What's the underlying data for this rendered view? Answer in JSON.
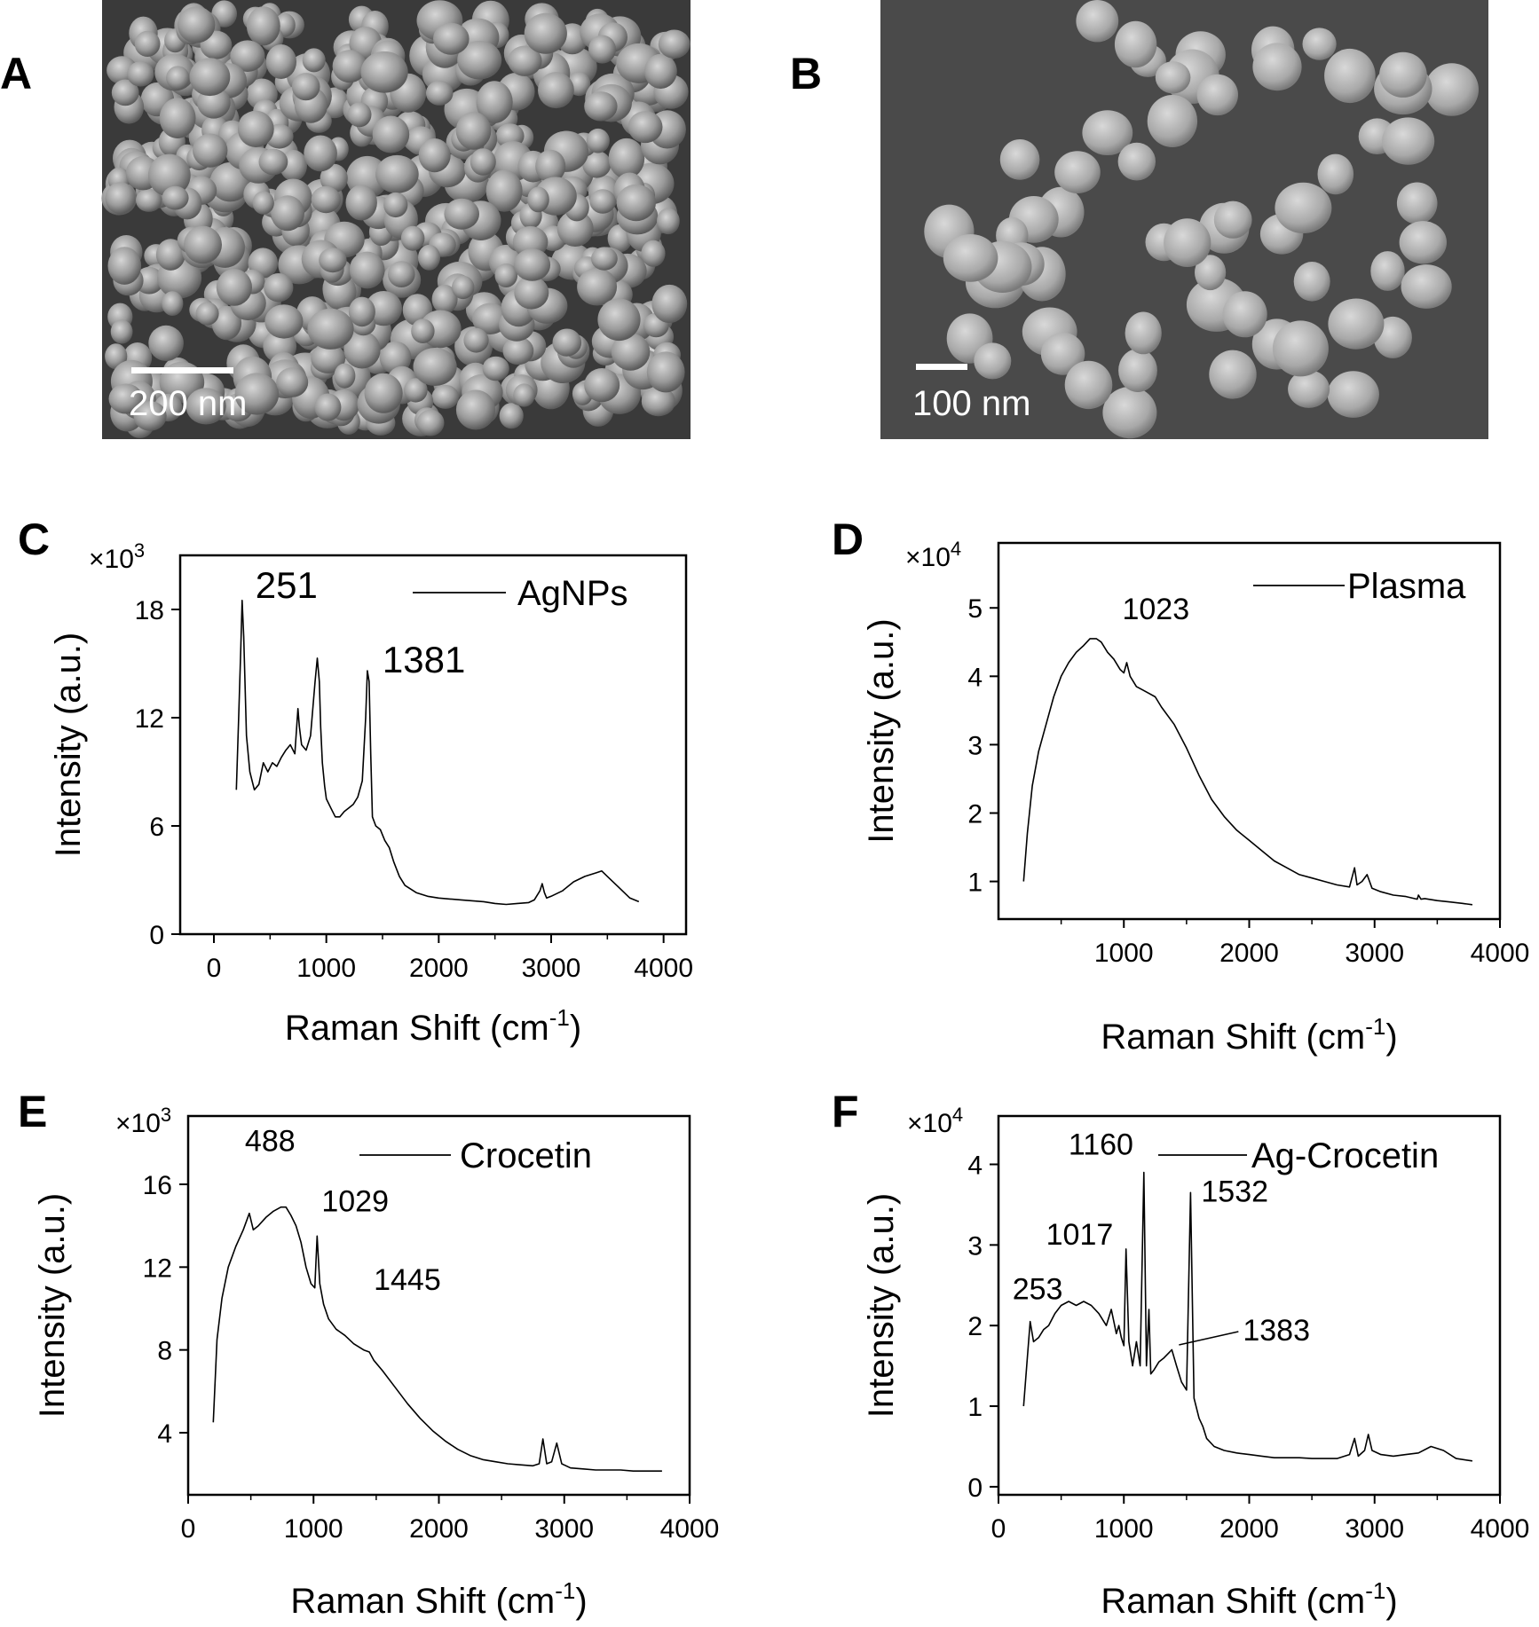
{
  "micrographs": [
    {
      "letter": "A",
      "scale_label": "200 nm"
    },
    {
      "letter": "B",
      "scale_label": "100 nm"
    }
  ],
  "chart_data": [
    {
      "letter": "C",
      "type": "line",
      "xlabel": "Raman Shift (cm",
      "xlabel_sup": "-1",
      "xlabel_close": ")",
      "ylabel": "Intensity (a.u.)",
      "multiplier_base": "×10",
      "multiplier_exp": "3",
      "xlim": [
        -300,
        4200
      ],
      "ylim": [
        0,
        21
      ],
      "xticks": [
        0,
        1000,
        2000,
        3000,
        4000
      ],
      "yticks": [
        0,
        6,
        12,
        18
      ],
      "legend": "AgNPs",
      "annotations": [
        {
          "text": "251",
          "x": 251,
          "y": 18.4,
          "dx": 15,
          "dy": -5,
          "size": "big"
        },
        {
          "text": "1381",
          "x": 1381,
          "y": 14.6,
          "dx": 15,
          "dy": 2,
          "size": "big"
        }
      ],
      "series": [
        {
          "x": [
            200,
            220,
            240,
            251,
            265,
            290,
            320,
            360,
            400,
            440,
            480,
            520,
            560,
            600,
            640,
            680,
            720,
            748,
            760,
            780,
            820,
            860,
            900,
            920,
            938,
            950,
            965,
            985,
            1000,
            1040,
            1080,
            1120,
            1160,
            1200,
            1240,
            1280,
            1320,
            1350,
            1365,
            1381,
            1395,
            1410,
            1440,
            1480,
            1520,
            1560,
            1600,
            1650,
            1700,
            1800,
            1900,
            2000,
            2100,
            2200,
            2300,
            2400,
            2500,
            2600,
            2700,
            2800,
            2850,
            2900,
            2920,
            2940,
            2960,
            3000,
            3100,
            3200,
            3300,
            3400,
            3450,
            3500,
            3600,
            3700,
            3780
          ],
          "y": [
            8.0,
            12.0,
            16.0,
            18.5,
            16.5,
            11.0,
            9.0,
            8.0,
            8.3,
            9.5,
            9.0,
            9.5,
            9.3,
            9.8,
            10.2,
            10.5,
            10.0,
            12.5,
            11.5,
            10.5,
            10.2,
            11.0,
            14.0,
            15.3,
            14.0,
            11.5,
            9.5,
            8.2,
            7.5,
            7.0,
            6.5,
            6.5,
            6.8,
            7.0,
            7.2,
            7.6,
            8.5,
            12.0,
            14.6,
            14.0,
            10.0,
            6.5,
            6.0,
            5.8,
            5.2,
            4.8,
            4.0,
            3.2,
            2.7,
            2.3,
            2.1,
            2.0,
            1.95,
            1.9,
            1.85,
            1.8,
            1.7,
            1.65,
            1.7,
            1.75,
            1.9,
            2.4,
            2.8,
            2.3,
            2.0,
            2.1,
            2.4,
            2.9,
            3.2,
            3.4,
            3.5,
            3.2,
            2.6,
            2.0,
            1.8
          ]
        }
      ]
    },
    {
      "letter": "D",
      "type": "line",
      "xlabel": "Raman Shift (cm",
      "xlabel_sup": "-1",
      "xlabel_close": ")",
      "ylabel": "Intensity (a.u.)",
      "multiplier_base": "×10",
      "multiplier_exp": "4",
      "xlim": [
        0,
        4000
      ],
      "ylim": [
        0.45,
        5.95
      ],
      "xticks": [
        1000,
        2000,
        3000,
        4000
      ],
      "yticks": [
        1,
        2,
        3,
        4,
        5
      ],
      "legend": "Plasma",
      "annotations": [
        {
          "text": "1023",
          "x": 1023,
          "y": 4.25,
          "dx": -5,
          "dy": -45,
          "size": "normal"
        }
      ],
      "series": [
        {
          "x": [
            200,
            230,
            270,
            320,
            380,
            440,
            500,
            560,
            620,
            680,
            730,
            780,
            820,
            870,
            920,
            970,
            1000,
            1023,
            1050,
            1100,
            1150,
            1200,
            1250,
            1300,
            1400,
            1500,
            1600,
            1700,
            1800,
            1900,
            2000,
            2100,
            2200,
            2300,
            2400,
            2500,
            2600,
            2700,
            2800,
            2840,
            2860,
            2900,
            2940,
            2980,
            3050,
            3150,
            3250,
            3340,
            3350,
            3370,
            3400,
            3500,
            3600,
            3700,
            3780
          ],
          "y": [
            1.0,
            1.7,
            2.4,
            2.9,
            3.3,
            3.7,
            4.0,
            4.2,
            4.35,
            4.45,
            4.55,
            4.55,
            4.5,
            4.35,
            4.25,
            4.1,
            4.05,
            4.2,
            4.0,
            3.85,
            3.8,
            3.75,
            3.7,
            3.55,
            3.3,
            2.95,
            2.55,
            2.2,
            1.95,
            1.75,
            1.6,
            1.45,
            1.3,
            1.2,
            1.1,
            1.05,
            1.0,
            0.95,
            0.92,
            1.2,
            0.95,
            1.0,
            1.1,
            0.9,
            0.85,
            0.8,
            0.78,
            0.74,
            0.8,
            0.74,
            0.75,
            0.72,
            0.7,
            0.68,
            0.66
          ]
        }
      ]
    },
    {
      "letter": "E",
      "type": "line",
      "xlabel": "Raman Shift (cm",
      "xlabel_sup": "-1",
      "xlabel_close": ")",
      "ylabel": "Intensity (a.u.)",
      "multiplier_base": "×10",
      "multiplier_exp": "3",
      "xlim": [
        0,
        4000
      ],
      "ylim": [
        1,
        19.3
      ],
      "xticks": [
        0,
        1000,
        2000,
        3000,
        4000
      ],
      "yticks": [
        4,
        8,
        12,
        16
      ],
      "legend": "Crocetin",
      "annotations": [
        {
          "text": "488",
          "x": 488,
          "y": 14.6,
          "dx": -5,
          "dy": -70,
          "size": "normal"
        },
        {
          "text": "1029",
          "x": 1029,
          "y": 13.5,
          "dx": 5,
          "dy": -28,
          "size": "normal"
        },
        {
          "text": "1445",
          "x": 1445,
          "y": 7.9,
          "dx": 5,
          "dy": -70,
          "size": "normal"
        }
      ],
      "series": [
        {
          "x": [
            200,
            230,
            270,
            320,
            380,
            440,
            488,
            520,
            560,
            620,
            680,
            740,
            780,
            820,
            860,
            900,
            940,
            980,
            1010,
            1029,
            1050,
            1080,
            1120,
            1180,
            1250,
            1320,
            1400,
            1445,
            1480,
            1550,
            1650,
            1750,
            1850,
            1950,
            2050,
            2150,
            2250,
            2350,
            2450,
            2550,
            2650,
            2750,
            2800,
            2830,
            2860,
            2900,
            2940,
            2980,
            3050,
            3150,
            3250,
            3350,
            3450,
            3550,
            3650,
            3780
          ],
          "y": [
            4.5,
            8.5,
            10.5,
            12.0,
            13.0,
            13.8,
            14.6,
            13.8,
            14.0,
            14.4,
            14.7,
            14.9,
            14.9,
            14.5,
            14.0,
            13.2,
            12.0,
            11.2,
            11.0,
            13.5,
            11.2,
            10.2,
            9.5,
            9.0,
            8.7,
            8.3,
            8.0,
            7.9,
            7.5,
            7.0,
            6.2,
            5.4,
            4.7,
            4.1,
            3.6,
            3.2,
            2.9,
            2.7,
            2.6,
            2.5,
            2.45,
            2.4,
            2.5,
            3.7,
            2.5,
            2.6,
            3.5,
            2.5,
            2.3,
            2.25,
            2.2,
            2.2,
            2.2,
            2.15,
            2.15,
            2.15
          ]
        }
      ]
    },
    {
      "letter": "F",
      "type": "line",
      "xlabel": "Raman Shift (cm",
      "xlabel_sup": "-1",
      "xlabel_close": ")",
      "ylabel": "Intensity (a.u.)",
      "multiplier_base": "×10",
      "multiplier_exp": "4",
      "xlim": [
        0,
        4000
      ],
      "ylim": [
        -0.1,
        4.6
      ],
      "xticks": [
        0,
        1000,
        2000,
        3000,
        4000
      ],
      "yticks": [
        0,
        1,
        2,
        3,
        4
      ],
      "legend": "Ag-Crocetin",
      "annotations": [
        {
          "text": "253",
          "x": 253,
          "y": 2.05,
          "dx": -20,
          "dy": -25,
          "size": "normal"
        },
        {
          "text": "1017",
          "x": 1017,
          "y": 2.95,
          "dx": -90,
          "dy": -5,
          "size": "normal"
        },
        {
          "text": "1160",
          "x": 1160,
          "y": 3.9,
          "dx": -85,
          "dy": -20,
          "size": "normal",
          "color": "#e8121b"
        },
        {
          "text": "1532",
          "x": 1532,
          "y": 3.65,
          "dx": 12,
          "dy": 10,
          "size": "normal",
          "color": "#e8121b"
        },
        {
          "text": "1383",
          "x": 1383,
          "y": 1.65,
          "dx": 80,
          "dy": -15,
          "size": "normal",
          "leader": true
        }
      ],
      "series": [
        {
          "x": [
            200,
            230,
            253,
            280,
            320,
            360,
            400,
            450,
            500,
            560,
            620,
            680,
            740,
            800,
            860,
            900,
            940,
            960,
            980,
            1000,
            1017,
            1040,
            1070,
            1100,
            1130,
            1160,
            1180,
            1200,
            1215,
            1240,
            1280,
            1320,
            1383,
            1420,
            1460,
            1500,
            1532,
            1560,
            1600,
            1630,
            1660,
            1720,
            1800,
            1900,
            2000,
            2100,
            2200,
            2300,
            2400,
            2500,
            2600,
            2700,
            2800,
            2840,
            2870,
            2920,
            2950,
            2980,
            3050,
            3150,
            3250,
            3350,
            3450,
            3550,
            3650,
            3780
          ],
          "y": [
            1.0,
            1.6,
            2.05,
            1.8,
            1.85,
            1.95,
            2.0,
            2.15,
            2.25,
            2.3,
            2.25,
            2.3,
            2.25,
            2.15,
            2.0,
            2.2,
            1.9,
            2.0,
            1.85,
            1.75,
            2.95,
            1.8,
            1.5,
            1.8,
            1.5,
            3.9,
            1.5,
            2.2,
            1.4,
            1.45,
            1.55,
            1.6,
            1.7,
            1.5,
            1.3,
            1.2,
            3.65,
            1.1,
            0.85,
            0.75,
            0.6,
            0.5,
            0.45,
            0.42,
            0.4,
            0.38,
            0.36,
            0.36,
            0.36,
            0.35,
            0.35,
            0.35,
            0.4,
            0.6,
            0.38,
            0.45,
            0.65,
            0.45,
            0.4,
            0.38,
            0.4,
            0.42,
            0.5,
            0.45,
            0.35,
            0.32
          ]
        }
      ]
    }
  ]
}
